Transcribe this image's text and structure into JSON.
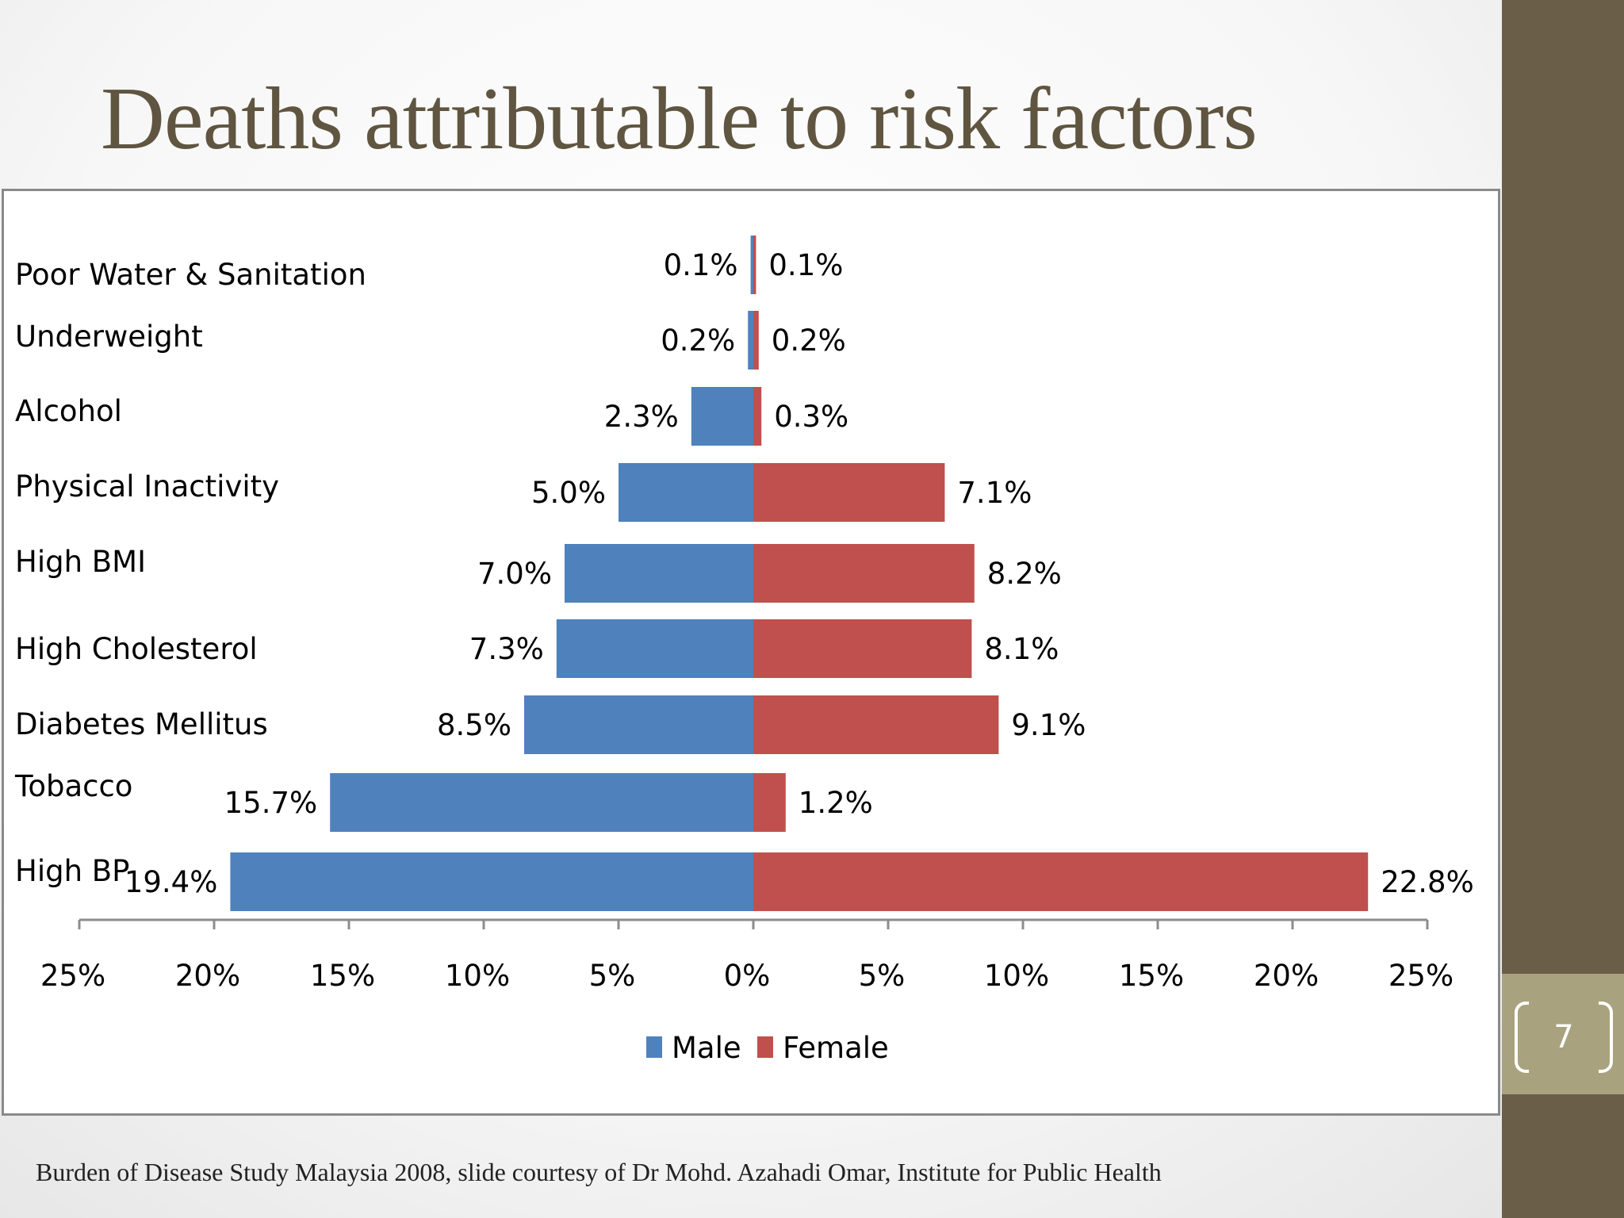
{
  "title": "Deaths attributable to risk factors",
  "footer": "Burden of Disease Study Malaysia 2008, slide courtesy of Dr Mohd. Azahadi Omar, Institute for Public Health",
  "page_number": "7",
  "colors": {
    "male": "#4f81bd",
    "female": "#c0504d",
    "title": "#5f5540",
    "sidebar": "#6b5e48",
    "page_box": "#a9a27e"
  },
  "chart_data": {
    "type": "bar",
    "orientation": "horizontal",
    "layout": "population-pyramid",
    "categories": [
      "Poor Water & Sanitation",
      "Underweight",
      "Alcohol",
      "Physical Inactivity",
      "High BMI",
      "High Cholesterol",
      "Diabetes Mellitus",
      "Tobacco",
      "High BP"
    ],
    "series": [
      {
        "name": "Male",
        "values": [
          0.1,
          0.2,
          2.3,
          5.0,
          7.0,
          7.3,
          8.5,
          15.7,
          19.4
        ],
        "labels": [
          "0.1%",
          "0.2%",
          "2.3%",
          "5.0%",
          "7.0%",
          "7.3%",
          "8.5%",
          "15.7%",
          "19.4%"
        ],
        "color": "#4f81bd"
      },
      {
        "name": "Female",
        "values": [
          0.1,
          0.2,
          0.3,
          7.1,
          8.2,
          8.1,
          9.1,
          1.2,
          22.8
        ],
        "labels": [
          "0.1%",
          "0.2%",
          "0.3%",
          "7.1%",
          "8.2%",
          "8.1%",
          "9.1%",
          "1.2%",
          "22.8%"
        ],
        "color": "#c0504d"
      }
    ],
    "x_ticks": [
      "25%",
      "20%",
      "15%",
      "10%",
      "5%",
      "0%",
      "5%",
      "10%",
      "15%",
      "20%",
      "25%"
    ],
    "xlim": [
      -25,
      25
    ],
    "title": "",
    "xlabel": "",
    "ylabel": "",
    "grid": false,
    "legend": "bottom-center"
  }
}
